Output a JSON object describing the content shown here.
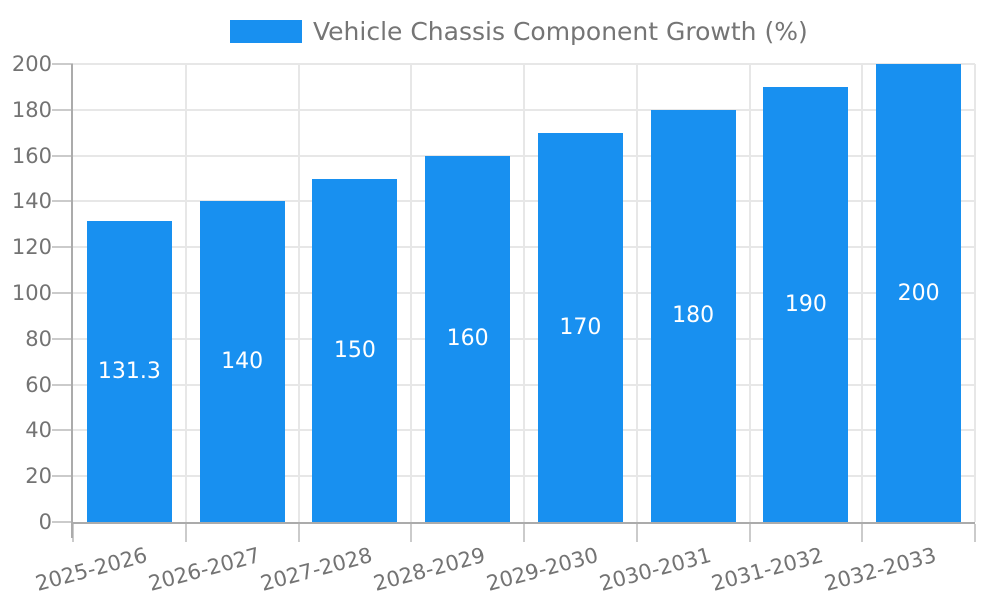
{
  "legend": {
    "label": "Vehicle Chassis Component Growth (%)"
  },
  "chart_data": {
    "type": "bar",
    "title": "Vehicle Chassis Component Growth (%)",
    "categories": [
      "2025-2026",
      "2026-2027",
      "2027-2028",
      "2028-2029",
      "2029-2030",
      "2030-2031",
      "2031-2032",
      "2032-2033"
    ],
    "values": [
      131.3,
      140,
      150,
      160,
      170,
      180,
      190,
      200
    ],
    "value_labels": [
      "131.3",
      "140",
      "150",
      "160",
      "170",
      "180",
      "190",
      "200"
    ],
    "xlabel": "",
    "ylabel": "",
    "ylim": [
      0,
      200
    ],
    "yticks": [
      0,
      20,
      40,
      60,
      80,
      100,
      120,
      140,
      160,
      180,
      200
    ],
    "grid": true,
    "legend_position": "top",
    "bar_color": "#1890F0",
    "bar_label_color": "#ffffff"
  },
  "colors": {
    "axis": "#ABABAB",
    "tick": "#CBCBCB",
    "grid": "#E7E7E7",
    "text": "#737373"
  }
}
